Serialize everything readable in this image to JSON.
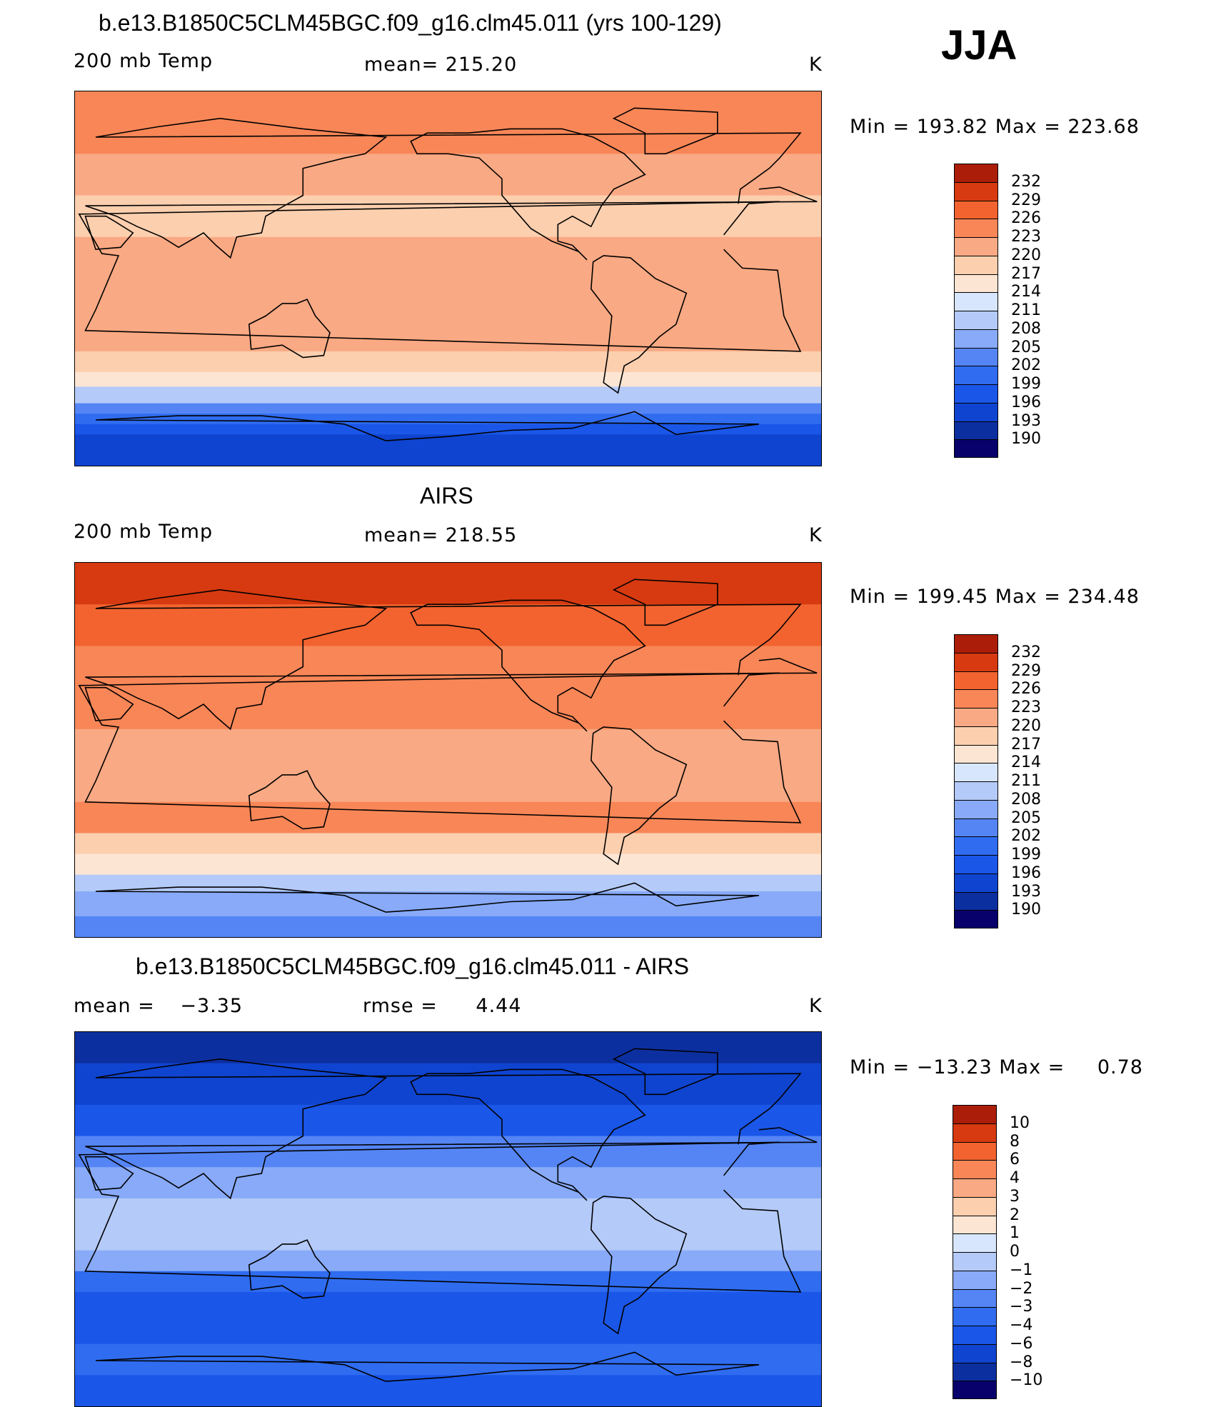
{
  "season": "JJA",
  "palettes": {
    "abs": [
      "#08006b",
      "#0c2fa0",
      "#0f44d0",
      "#1a56e8",
      "#2f6cf0",
      "#5585f5",
      "#88aaf8",
      "#b4caf8",
      "#d7e6fc",
      "#fde5d3",
      "#fccfae",
      "#f9a983",
      "#f88657",
      "#f2632f",
      "#d73a10",
      "#ab1d08",
      "#7b0a05"
    ],
    "diff": [
      "#08006b",
      "#0c2fa0",
      "#0f44d0",
      "#1a56e8",
      "#2f6cf0",
      "#5585f5",
      "#88aaf8",
      "#b4caf8",
      "#d7e6fc",
      "#fde5d3",
      "#fccfae",
      "#f9a983",
      "#f88657",
      "#f2632f",
      "#d73a10",
      "#ab1d08",
      "#7b0a05"
    ]
  },
  "chart_data": [
    {
      "type": "heatmap",
      "title": "b.e13.B1850C5CLM45BGC.f09_g16.clm45.011 (yrs 100-129)",
      "variable": "200 mb Temp",
      "mean_label": "mean=",
      "mean_value": "215.20",
      "units": "K",
      "min_label": "Min",
      "min_value": "193.82",
      "max_label": "Max",
      "max_value": "223.68",
      "colorbar_levels": [
        "190",
        "193",
        "196",
        "199",
        "202",
        "205",
        "208",
        "211",
        "214",
        "217",
        "220",
        "223",
        "226",
        "229",
        "232"
      ],
      "field_bands": [
        {
          "lat": 90,
          "level": 223
        },
        {
          "lat": 60,
          "level": 220
        },
        {
          "lat": 40,
          "level": 217
        },
        {
          "lat": 20,
          "level": 220
        },
        {
          "lat": 0,
          "level": 220
        },
        {
          "lat": -20,
          "level": 220
        },
        {
          "lat": -35,
          "level": 217
        },
        {
          "lat": -45,
          "level": 214
        },
        {
          "lat": -52,
          "level": 208
        },
        {
          "lat": -60,
          "level": 202
        },
        {
          "lat": -65,
          "level": 199
        },
        {
          "lat": -70,
          "level": 196
        },
        {
          "lat": -75,
          "level": 193
        },
        {
          "lat": -90,
          "level": 193
        }
      ]
    },
    {
      "type": "heatmap",
      "title": "AIRS",
      "variable": "200 mb Temp",
      "mean_label": "mean=",
      "mean_value": "218.55",
      "units": "K",
      "min_label": "Min",
      "min_value": "199.45",
      "max_label": "Max",
      "max_value": "234.48",
      "colorbar_levels": [
        "190",
        "193",
        "196",
        "199",
        "202",
        "205",
        "208",
        "211",
        "214",
        "217",
        "220",
        "223",
        "226",
        "229",
        "232"
      ],
      "field_bands": [
        {
          "lat": 90,
          "level": 229
        },
        {
          "lat": 70,
          "level": 226
        },
        {
          "lat": 50,
          "level": 223
        },
        {
          "lat": 30,
          "level": 223
        },
        {
          "lat": 10,
          "level": 220
        },
        {
          "lat": -10,
          "level": 220
        },
        {
          "lat": -25,
          "level": 223
        },
        {
          "lat": -40,
          "level": 217
        },
        {
          "lat": -50,
          "level": 214
        },
        {
          "lat": -60,
          "level": 208
        },
        {
          "lat": -68,
          "level": 205
        },
        {
          "lat": -80,
          "level": 202
        },
        {
          "lat": -90,
          "level": 202
        }
      ]
    },
    {
      "type": "heatmap",
      "title": "b.e13.B1850C5CLM45BGC.f09_g16.clm45.011 - AIRS",
      "mean_label": "mean =",
      "mean_value": "−3.35",
      "rmse_label": "rmse =",
      "rmse_value": "4.44",
      "units": "K",
      "min_label": "Min",
      "min_value": "−13.23",
      "max_label": "Max",
      "max_value": "0.78",
      "colorbar_levels": [
        "−10",
        "−8",
        "−6",
        "−4",
        "−3",
        "−2",
        "−1",
        "0",
        "1",
        "2",
        "3",
        "4",
        "6",
        "8",
        "10"
      ],
      "field_bands": [
        {
          "lat": 90,
          "level": -10
        },
        {
          "lat": 75,
          "level": -8
        },
        {
          "lat": 55,
          "level": -6
        },
        {
          "lat": 40,
          "level": -3
        },
        {
          "lat": 25,
          "level": -2
        },
        {
          "lat": 10,
          "level": -1
        },
        {
          "lat": 0,
          "level": -1
        },
        {
          "lat": -15,
          "level": -2
        },
        {
          "lat": -25,
          "level": -4
        },
        {
          "lat": -35,
          "level": -6
        },
        {
          "lat": -50,
          "level": -6
        },
        {
          "lat": -60,
          "level": -4
        },
        {
          "lat": -75,
          "level": -6
        },
        {
          "lat": -90,
          "level": -6
        }
      ]
    }
  ]
}
